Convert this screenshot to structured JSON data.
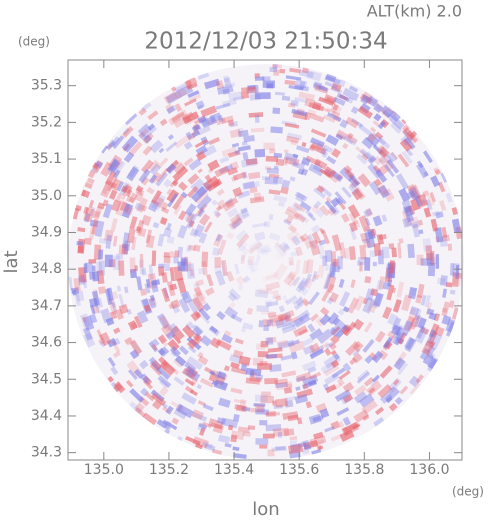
{
  "chart_data": {
    "type": "image",
    "title": "2012/12/03 21:50:34",
    "subtitle": "ALT(km) 2.0",
    "x_label": "lon",
    "y_label": "lat",
    "x_unit": "(deg)",
    "y_unit": "(deg)",
    "xlim": [
      134.89,
      136.1
    ],
    "ylim": [
      34.28,
      35.37
    ],
    "xticks": [
      {
        "value": 135.0,
        "label": "135.0"
      },
      135.2,
      135.4,
      135.6,
      135.8,
      {
        "value": 136.0,
        "label": "136.0"
      }
    ],
    "yticks": [
      34.3,
      34.4,
      34.5,
      34.6,
      34.7,
      34.8,
      34.9,
      {
        "value": 35.0,
        "label": "35.0"
      },
      35.1,
      35.2,
      35.3
    ]
  }
}
